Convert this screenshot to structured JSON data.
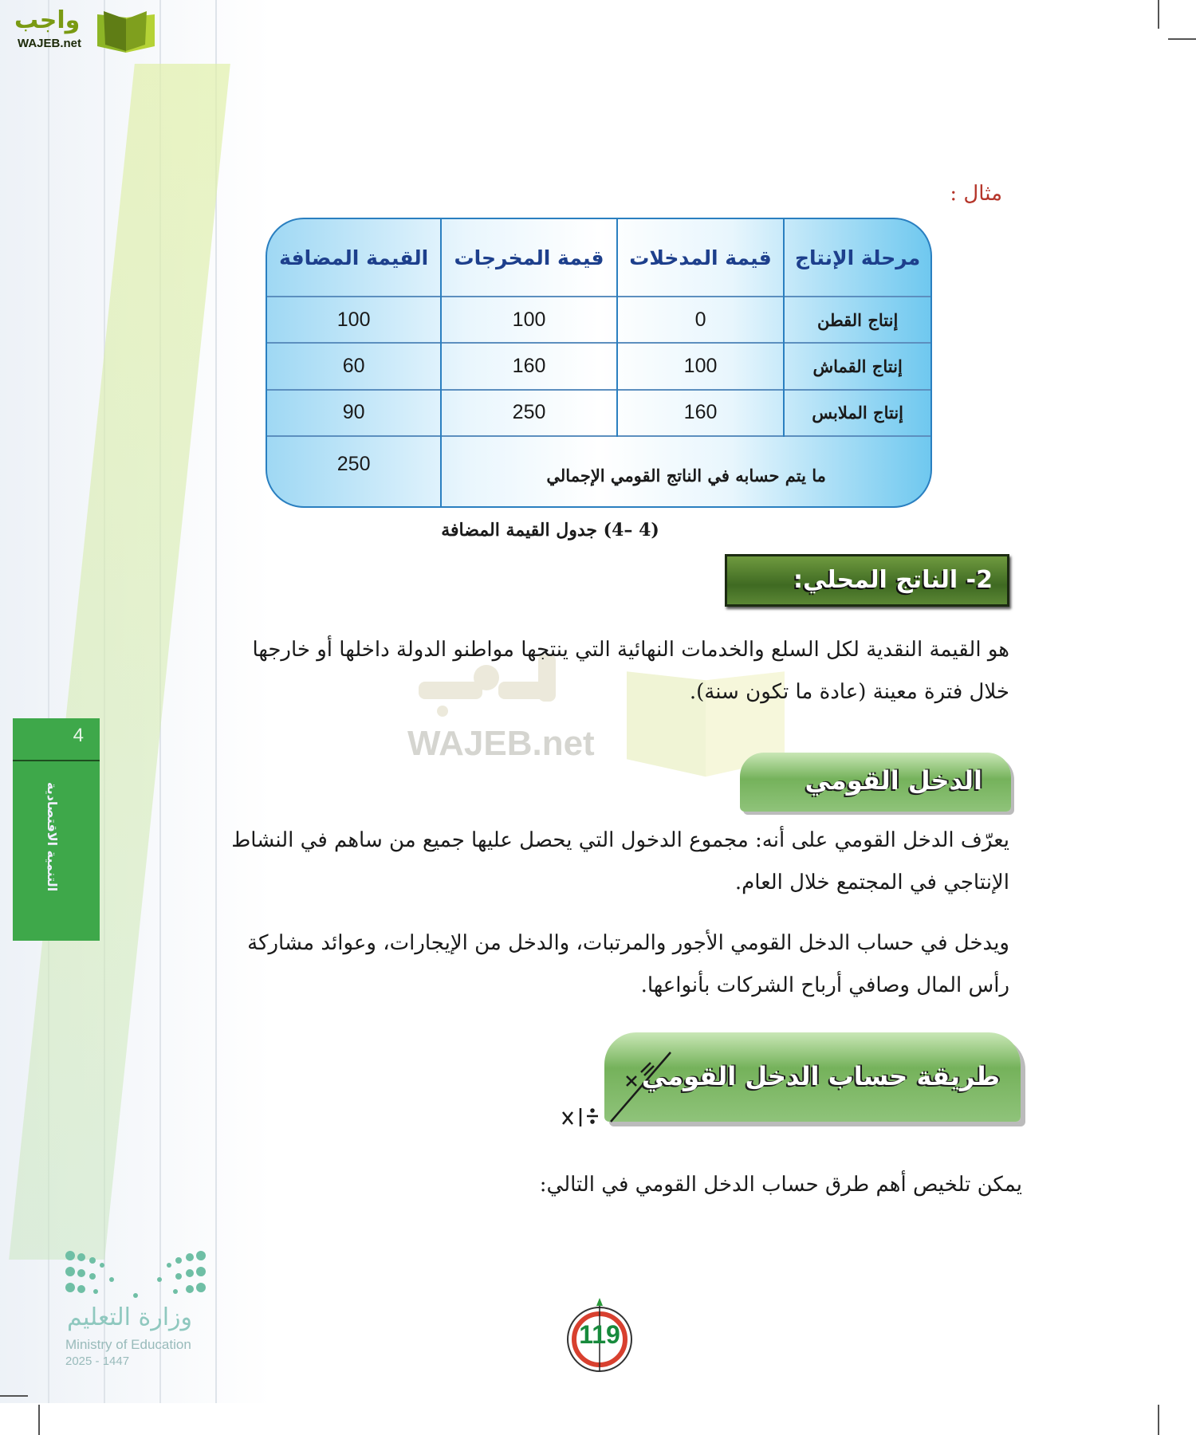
{
  "logo": {
    "arabic": "واجب",
    "latin": "WAJEB.net"
  },
  "example_label": "مثال :",
  "table": {
    "headers": [
      "مرحلة الإنتاج",
      "قيمة المدخلات",
      "قيمة المخرجات",
      "القيمة المضافة"
    ],
    "rows": [
      {
        "stage": "إنتاج القطن",
        "inputs": "0",
        "outputs": "100",
        "value_added": "100"
      },
      {
        "stage": "إنتاج القماش",
        "inputs": "100",
        "outputs": "160",
        "value_added": "60"
      },
      {
        "stage": "إنتاج الملابس",
        "inputs": "160",
        "outputs": "250",
        "value_added": "90"
      }
    ],
    "total_label": "ما يتم حسابه في الناتج القومي الإجمالي",
    "total_value": "250",
    "caption": "(4 –4) جدول القيمة المضافة"
  },
  "section_domestic": {
    "heading": "2- الناتج المحلي:",
    "lines": [
      "هو القيمة النقدية لكل السلع والخدمات النهائية التي ينتجها مواطنو الدولة داخلها أو خارجها",
      "خلال فترة معينة (عادة ما تكون سنة)."
    ]
  },
  "watermark": {
    "arabic": "واجب",
    "latin": "WAJEB.net"
  },
  "section_national_income": {
    "heading": "الدخل القومي",
    "para1": [
      "يعرّف الدخل القومي على أنه: مجموع الدخول التي يحصل عليها جميع من ساهم في النشاط",
      "الإنتاجي في المجتمع خلال العام."
    ],
    "para2": [
      "ويدخل في حساب الدخل القومي الأجور والمرتبات، والدخل من الإيجارات، وعوائد مشاركة",
      "رأس المال وصافي أرباح الشركات بأنواعها."
    ]
  },
  "section_method": {
    "heading": "طريقة حساب الدخل القومي",
    "intro": "يمكن تلخيص أهم طرق حساب الدخل القومي في التالي:"
  },
  "side_tab": {
    "unit_number": "4",
    "unit_title": "التنمية الاقتصادية"
  },
  "ministry": {
    "arabic": "وزارة التعليم",
    "english": "Ministry of Education",
    "year": "2025 - 1447"
  },
  "page_number": "119",
  "colors": {
    "accent_green": "#3ea84a",
    "table_border": "#2a7fc0",
    "header_text": "#1d3f8c",
    "example_red": "#b5352a"
  }
}
